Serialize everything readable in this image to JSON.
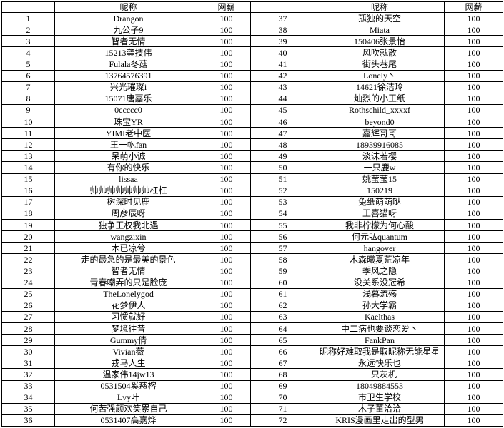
{
  "table": {
    "headers": {
      "nickname": "昵称",
      "salary": "网薪"
    },
    "rows_left": [
      {
        "no": "1",
        "nick": "Drangon",
        "pay": "100"
      },
      {
        "no": "2",
        "nick": "九公子9",
        "pay": "100"
      },
      {
        "no": "3",
        "nick": "智者无情",
        "pay": "100"
      },
      {
        "no": "4",
        "nick": "15213龚技伟",
        "pay": "100"
      },
      {
        "no": "5",
        "nick": "Fulala冬菇",
        "pay": "100"
      },
      {
        "no": "6",
        "nick": "13764576391",
        "pay": "100"
      },
      {
        "no": "7",
        "nick": "兴光璀璨i",
        "pay": "100"
      },
      {
        "no": "8",
        "nick": "15071唐嘉乐",
        "pay": "100"
      },
      {
        "no": "9",
        "nick": "0ccccc0",
        "pay": "100"
      },
      {
        "no": "10",
        "nick": "珠宝YR",
        "pay": "100"
      },
      {
        "no": "11",
        "nick": "YIMI老中医",
        "pay": "100"
      },
      {
        "no": "12",
        "nick": "王一帆fan",
        "pay": "100"
      },
      {
        "no": "13",
        "nick": "呆萌小诚",
        "pay": "100"
      },
      {
        "no": "14",
        "nick": "有你的快乐",
        "pay": "100"
      },
      {
        "no": "15",
        "nick": "lissaa",
        "pay": "100"
      },
      {
        "no": "16",
        "nick": "帅帅帅帅帅帅帅杠杠",
        "pay": "100"
      },
      {
        "no": "17",
        "nick": "树深时见鹿",
        "pay": "100"
      },
      {
        "no": "18",
        "nick": "周彦辰呀",
        "pay": "100"
      },
      {
        "no": "19",
        "nick": "独争王权我北遇",
        "pay": "100"
      },
      {
        "no": "20",
        "nick": "wangzixin",
        "pay": "100"
      },
      {
        "no": "21",
        "nick": "木已凉兮",
        "pay": "100"
      },
      {
        "no": "22",
        "nick": "走的最急的是最美的景色",
        "pay": "100"
      },
      {
        "no": "23",
        "nick": "智者无情",
        "pay": "100"
      },
      {
        "no": "24",
        "nick": "青春嘲弄的只是脸庞",
        "pay": "100"
      },
      {
        "no": "25",
        "nick": "TheLonelygod",
        "pay": "100"
      },
      {
        "no": "26",
        "nick": "花梦伊人",
        "pay": "100"
      },
      {
        "no": "27",
        "nick": "习惯就好",
        "pay": "100"
      },
      {
        "no": "28",
        "nick": "梦境往昔",
        "pay": "100"
      },
      {
        "no": "29",
        "nick": "Gummy倩",
        "pay": "100"
      },
      {
        "no": "30",
        "nick": "Vivian薇",
        "pay": "100"
      },
      {
        "no": "31",
        "nick": "戎马人生",
        "pay": "100"
      },
      {
        "no": "32",
        "nick": "温家伟14jw13",
        "pay": "100"
      },
      {
        "no": "33",
        "nick": "0531504奚慈榕",
        "pay": "100"
      },
      {
        "no": "34",
        "nick": "Lvy叶",
        "pay": "100"
      },
      {
        "no": "35",
        "nick": "何苦强颜欢笑累自己",
        "pay": "100"
      },
      {
        "no": "36",
        "nick": "0531407高嘉烨",
        "pay": "100"
      }
    ],
    "rows_right": [
      {
        "no": "37",
        "nick": "孤独的天空",
        "pay": "100"
      },
      {
        "no": "38",
        "nick": "Miata",
        "pay": "100"
      },
      {
        "no": "39",
        "nick": "150406张景怡",
        "pay": "100"
      },
      {
        "no": "40",
        "nick": "风吹就散",
        "pay": "100"
      },
      {
        "no": "41",
        "nick": "街头巷尾",
        "pay": "100"
      },
      {
        "no": "42",
        "nick": "Lonely丶",
        "pay": "100"
      },
      {
        "no": "43",
        "nick": "14621徐洁玲",
        "pay": "100"
      },
      {
        "no": "44",
        "nick": "灿烈的小王纸",
        "pay": "100"
      },
      {
        "no": "45",
        "nick": "Rothschild_xxxxf",
        "pay": "100"
      },
      {
        "no": "46",
        "nick": "beyond0",
        "pay": "100"
      },
      {
        "no": "47",
        "nick": "嘉辉哥哥",
        "pay": "100"
      },
      {
        "no": "48",
        "nick": "18939916085",
        "pay": "100"
      },
      {
        "no": "49",
        "nick": "淡沫若樱",
        "pay": "100"
      },
      {
        "no": "50",
        "nick": "一只鹿w",
        "pay": "100"
      },
      {
        "no": "51",
        "nick": "姚莹莹15",
        "pay": "100"
      },
      {
        "no": "52",
        "nick": "150219",
        "pay": "100"
      },
      {
        "no": "53",
        "nick": "兔纸萌萌哒",
        "pay": "100"
      },
      {
        "no": "54",
        "nick": "王喜猫呀",
        "pay": "100"
      },
      {
        "no": "55",
        "nick": "我非柠檬为何心酸",
        "pay": "100"
      },
      {
        "no": "56",
        "nick": "何元弘quantum",
        "pay": "100"
      },
      {
        "no": "57",
        "nick": "hangover",
        "pay": "100"
      },
      {
        "no": "58",
        "nick": "木森曦夏荒凉年",
        "pay": "100"
      },
      {
        "no": "59",
        "nick": "季风之隐",
        "pay": "100"
      },
      {
        "no": "60",
        "nick": "没关系没冠希",
        "pay": "100"
      },
      {
        "no": "61",
        "nick": "浅暮流殇",
        "pay": "100"
      },
      {
        "no": "62",
        "nick": "孙大学霸",
        "pay": "100"
      },
      {
        "no": "63",
        "nick": "Kaelthas",
        "pay": "100"
      },
      {
        "no": "64",
        "nick": "中二病也要谈恋爱丶",
        "pay": "100"
      },
      {
        "no": "65",
        "nick": "FankPan",
        "pay": "100"
      },
      {
        "no": "66",
        "nick": "昵称好难取我是取昵称无能星星",
        "pay": "100"
      },
      {
        "no": "67",
        "nick": "永远快乐也",
        "pay": "100"
      },
      {
        "no": "68",
        "nick": "一只灰机",
        "pay": "100"
      },
      {
        "no": "69",
        "nick": "18049884553",
        "pay": "100"
      },
      {
        "no": "70",
        "nick": "市卫生学校",
        "pay": "100"
      },
      {
        "no": "71",
        "nick": "木子董洽洽",
        "pay": "100"
      },
      {
        "no": "72",
        "nick": "KRIS漫画里走出的型男",
        "pay": "100"
      }
    ]
  }
}
